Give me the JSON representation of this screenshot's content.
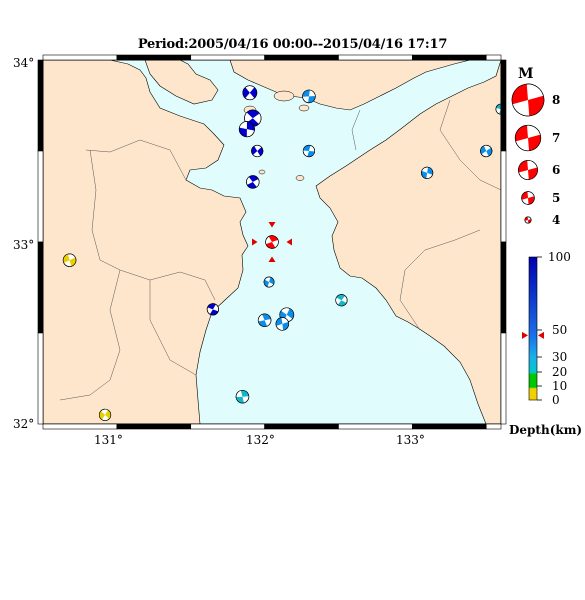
{
  "title": "Period:2005/04/16 00:00--2015/04/16 17:17",
  "map": {
    "lon_range": [
      130.5,
      133.6
    ],
    "lat_range": [
      32.0,
      34.0
    ],
    "lon_ticks": [
      "131°",
      "132°",
      "133°"
    ],
    "lat_ticks": [
      "34°",
      "33°",
      "32°"
    ],
    "sea_color": "#e0fcfc",
    "land_color": "#fde6cb"
  },
  "events": [
    {
      "lon": 131.9,
      "lat": 33.82,
      "mag": 5.2,
      "depth_color": "#0000c8"
    },
    {
      "lon": 132.3,
      "lat": 33.8,
      "mag": 5.0,
      "depth_color": "#0a8ee8"
    },
    {
      "lon": 131.92,
      "lat": 33.68,
      "mag": 5.6,
      "depth_color": "#0000c8"
    },
    {
      "lon": 131.88,
      "lat": 33.62,
      "mag": 5.4,
      "depth_color": "#0000c8"
    },
    {
      "lon": 131.95,
      "lat": 33.5,
      "mag": 4.8,
      "depth_color": "#0000c8"
    },
    {
      "lon": 132.3,
      "lat": 33.5,
      "mag": 4.8,
      "depth_color": "#0a8ee8"
    },
    {
      "lon": 131.92,
      "lat": 33.33,
      "mag": 5.0,
      "depth_color": "#0000c8"
    },
    {
      "lon": 133.1,
      "lat": 33.38,
      "mag": 4.8,
      "depth_color": "#0a8ee8"
    },
    {
      "lon": 133.5,
      "lat": 33.5,
      "mag": 4.8,
      "depth_color": "#0a8ee8"
    },
    {
      "lon": 133.6,
      "lat": 33.73,
      "mag": 4.6,
      "depth_color": "#12b8c8"
    },
    {
      "lon": 132.05,
      "lat": 33.0,
      "mag": 5.0,
      "depth_color": "#ff0000"
    },
    {
      "lon": 132.03,
      "lat": 32.78,
      "mag": 4.6,
      "depth_color": "#0a8ee8"
    },
    {
      "lon": 130.68,
      "lat": 32.9,
      "mag": 5.0,
      "depth_color": "#e8d000"
    },
    {
      "lon": 131.65,
      "lat": 32.63,
      "mag": 4.8,
      "depth_color": "#0000c8"
    },
    {
      "lon": 132.0,
      "lat": 32.57,
      "mag": 5.0,
      "depth_color": "#0a8ee8"
    },
    {
      "lon": 132.15,
      "lat": 32.6,
      "mag": 5.2,
      "depth_color": "#0a8ee8"
    },
    {
      "lon": 132.12,
      "lat": 32.55,
      "mag": 5.0,
      "depth_color": "#0a8ee8"
    },
    {
      "lon": 132.52,
      "lat": 32.68,
      "mag": 4.8,
      "depth_color": "#12b8c8"
    },
    {
      "lon": 131.85,
      "lat": 32.15,
      "mag": 5.0,
      "depth_color": "#12b8c8"
    },
    {
      "lon": 130.92,
      "lat": 32.05,
      "mag": 4.8,
      "depth_color": "#e8d000"
    }
  ],
  "latest_event": {
    "lon": 132.05,
    "lat": 33.0
  },
  "legend": {
    "mag_title": "M",
    "magnitudes": [
      "8",
      "7",
      "6",
      "5",
      "4"
    ],
    "depth_title": "Depth(km)",
    "depth_ticks": [
      "100",
      "50",
      "30",
      "20",
      "10",
      "0"
    ],
    "latest_depth_marker": 46
  }
}
